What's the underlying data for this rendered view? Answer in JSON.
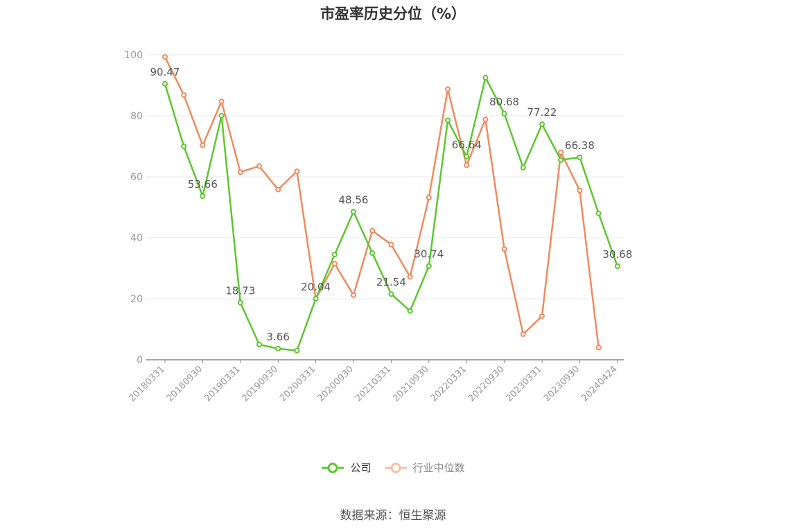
{
  "title": "市盈率历史分位（%）",
  "source": "数据来源：恒生聚源",
  "chart_data": {
    "type": "line",
    "title": "市盈率历史分位（%）",
    "ylim": [
      0,
      100
    ],
    "yticks": [
      0,
      20,
      40,
      60,
      80,
      100
    ],
    "grid": true,
    "legend_position": "bottom",
    "x": [
      "20180331",
      "20180630",
      "20180930",
      "20181231",
      "20190331",
      "20190630",
      "20190930",
      "20191231",
      "20200331",
      "20200630",
      "20200930",
      "20201231",
      "20210331",
      "20210630",
      "20210930",
      "20211231",
      "20220331",
      "20220630",
      "20220930",
      "20221231",
      "20230331",
      "20230630",
      "20230930",
      "20231231",
      "20240424"
    ],
    "x_tick_labels": [
      "20180331",
      "20180930",
      "20190331",
      "20190930",
      "20200331",
      "20200930",
      "20210331",
      "20210930",
      "20220331",
      "20220930",
      "20230331",
      "20230930",
      "20240424"
    ],
    "series": [
      {
        "name": "公司",
        "color": "#5cc72e",
        "values": [
          90.47,
          70.0,
          53.66,
          80.0,
          18.73,
          5.0,
          3.66,
          3.0,
          20.04,
          34.5,
          48.56,
          35.0,
          21.54,
          16.0,
          30.74,
          78.5,
          66.64,
          92.5,
          80.68,
          63.0,
          77.22,
          65.5,
          66.38,
          48.0,
          30.68
        ],
        "labels": {
          "0": "90.47",
          "2": "53.66",
          "4": "18.73",
          "6": "3.66",
          "8": "20.04",
          "10": "48.56",
          "12": "21.54",
          "14": "30.74",
          "16": "66.64",
          "18": "80.68",
          "20": "77.22",
          "22": "66.38",
          "24": "30.68"
        }
      },
      {
        "name": "行业中位数",
        "color": "#f08a5d",
        "values": [
          99.3,
          86.8,
          70.3,
          84.7,
          61.5,
          63.5,
          55.8,
          61.8,
          20.0,
          31.5,
          21.2,
          42.3,
          37.8,
          27.2,
          53.2,
          88.7,
          63.8,
          78.8,
          36.3,
          8.4,
          14.3,
          68.0,
          55.5,
          4.0,
          null
        ],
        "labels": {}
      }
    ]
  }
}
